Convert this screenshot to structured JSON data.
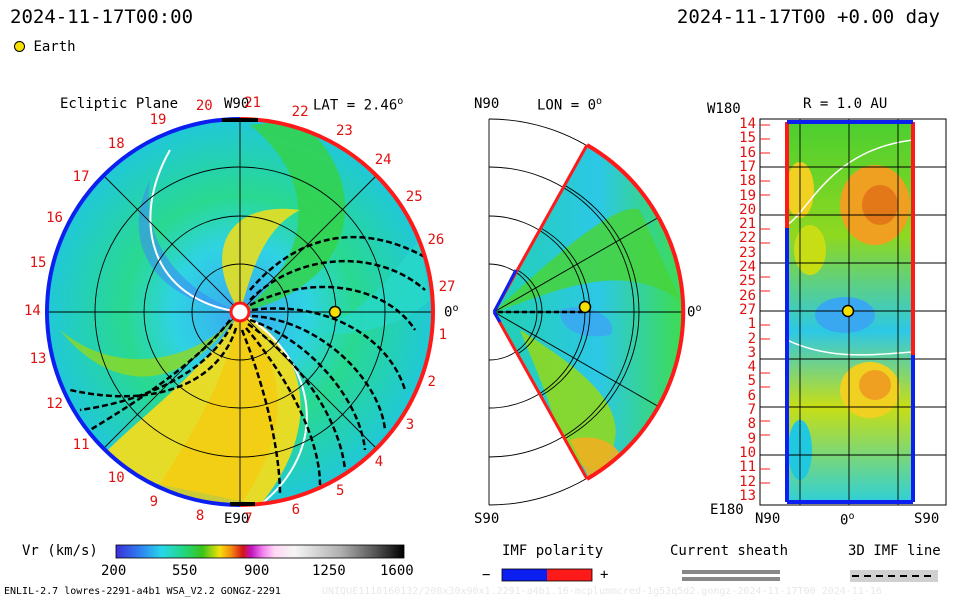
{
  "header": {
    "left_timestamp": "2024-11-17T00:00",
    "right_timestamp": "2024-11-17T00 +0.00 day",
    "legend_earth": "Earth"
  },
  "ecliptic_panel": {
    "title": "Ecliptic Plane",
    "lat_label": "LAT = 2.46",
    "lat_degree": "o",
    "top_label": "W90",
    "bottom_label": "E90",
    "right_label": "0",
    "right_label_degree": "o",
    "carrington_labels": [
      "1",
      "2",
      "3",
      "4",
      "5",
      "6",
      "7",
      "8",
      "9",
      "10",
      "11",
      "12",
      "13",
      "14",
      "15",
      "16",
      "17",
      "18",
      "19",
      "20",
      "21",
      "22",
      "23",
      "24",
      "25",
      "26",
      "27"
    ]
  },
  "meridional_panel": {
    "title_left": "N90",
    "lon_label": "LON = 0",
    "lon_degree": "o",
    "bottom_label": "S90",
    "right_label": "0",
    "right_label_degree": "o"
  },
  "radial_panel": {
    "title": "R = 1.0 AU",
    "top_left": "W180",
    "bottom_left": "E180",
    "x_labels": [
      "N90",
      "0",
      "S90"
    ],
    "x_zero_degree": "o",
    "y_labels": [
      "14",
      "15",
      "16",
      "17",
      "18",
      "19",
      "20",
      "21",
      "22",
      "23",
      "24",
      "25",
      "26",
      "27",
      "1",
      "2",
      "3",
      "4",
      "5",
      "6",
      "7",
      "8",
      "9",
      "10",
      "11",
      "12",
      "13"
    ]
  },
  "colorbar": {
    "label": "Vr (km/s)",
    "ticks": [
      "200",
      "550",
      "900",
      "1250",
      "1600"
    ]
  },
  "imf_legend": {
    "title": "IMF polarity",
    "minus": "−",
    "plus": "+"
  },
  "sheath_legend": {
    "title": "Current sheath"
  },
  "imf_line_legend": {
    "title": "3D IMF line"
  },
  "footer": {
    "left": "ENLIL-2.7 lowres-2291-a4b1 WSA_V2.2 GONGZ-2291",
    "right": "UNIQUE1118160132/208x30x90x1.2291-a4b1.16-mcplummcred-1g53q5d2.gongz-2024-11-17T00 2024-11-16"
  },
  "colors": {
    "polarity_negative": "#0b1ff0",
    "polarity_positive": "#ff1a1a",
    "earth_marker": "#f5e000",
    "carrington_label": "#e01010"
  },
  "chart_data": [
    {
      "type": "heatmap",
      "title": "Ecliptic Plane",
      "quantity": "Vr (km/s)",
      "range": [
        200,
        1600
      ],
      "earth_position": {
        "radius_au": 1.0,
        "angle_deg": 0
      }
    },
    {
      "type": "heatmap",
      "title": "LON = 0",
      "quantity": "Vr (km/s)",
      "range": [
        200,
        1600
      ],
      "latitude_range_deg": [
        -60,
        60
      ]
    },
    {
      "type": "heatmap",
      "title": "R = 1.0 AU",
      "quantity": "Vr (km/s)",
      "range": [
        200,
        1600
      ],
      "x_range": [
        "N90",
        "S90"
      ],
      "y_range": [
        "W180",
        "E180"
      ],
      "earth_position": {
        "lat_deg": 0,
        "carrington_day": 27
      }
    }
  ]
}
